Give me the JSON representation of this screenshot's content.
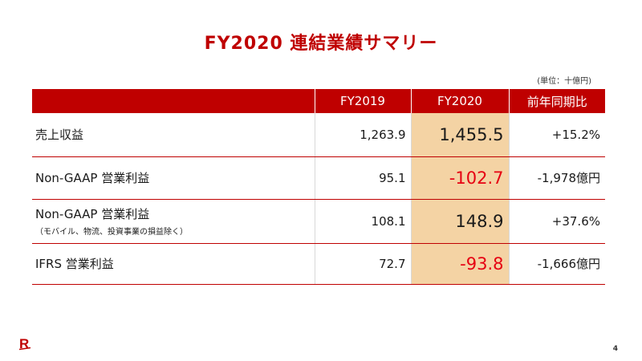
{
  "title": "FY2020 連結業績サマリー",
  "unit": "(単位：十億円)",
  "table": {
    "headers": [
      "",
      "FY2019",
      "FY2020",
      "前年同期比"
    ],
    "rows": [
      {
        "label": "売上収益",
        "sub": "",
        "fy2019": "1,263.9",
        "fy2020": "1,455.5",
        "yoy": "+15.2%",
        "negative": false
      },
      {
        "label": "Non-GAAP 営業利益",
        "sub": "",
        "fy2019": "95.1",
        "fy2020": "-102.7",
        "yoy": "-1,978億円",
        "negative": true
      },
      {
        "label": "Non-GAAP 営業利益",
        "sub": "（モバイル、物流、投資事業の損益除く）",
        "fy2019": "108.1",
        "fy2020": "148.9",
        "yoy": "+37.6%",
        "negative": false
      },
      {
        "label": "IFRS 営業利益",
        "sub": "",
        "fy2019": "72.7",
        "fy2020": "-93.8",
        "yoy": "-1,666億円",
        "negative": true
      }
    ]
  },
  "colors": {
    "accent": "#bf0000",
    "highlight": "#f4d3a4",
    "negative": "#e60012"
  },
  "logo": {
    "icon": "rakuten-r-logo",
    "text": "R"
  },
  "page_number": "4"
}
